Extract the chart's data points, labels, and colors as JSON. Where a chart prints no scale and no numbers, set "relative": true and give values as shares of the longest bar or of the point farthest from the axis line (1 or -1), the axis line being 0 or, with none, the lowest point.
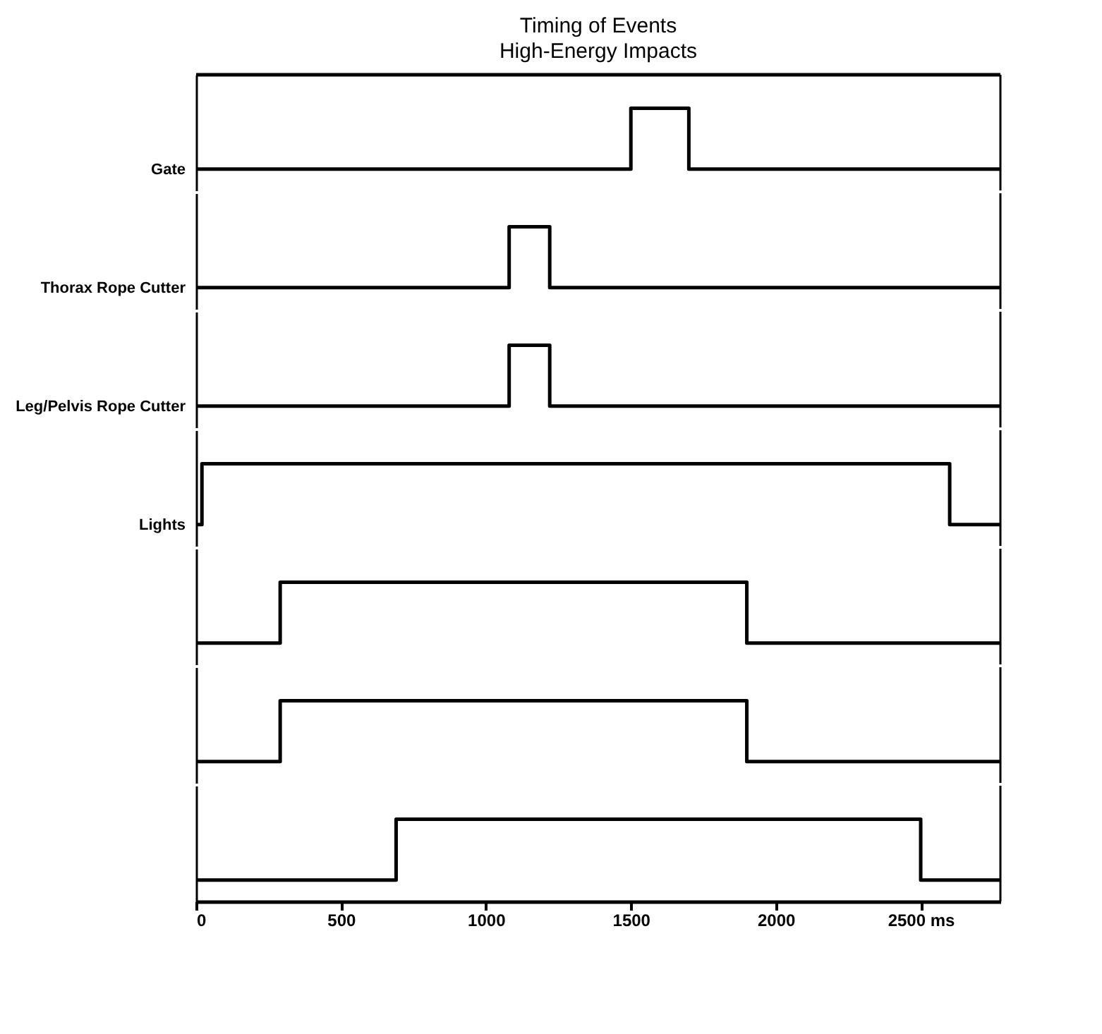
{
  "chart_data": [
    {
      "type": "step",
      "title": "Timing of Events",
      "subtitle": "High-Energy Impacts",
      "ylabel": "Gate",
      "relative": true,
      "tick_labels": false,
      "xlim": [
        0,
        2775
      ],
      "x": [
        0,
        1500,
        1700,
        2775
      ],
      "series": [
        {
          "color": "#000000",
          "values": [
            0,
            1,
            0,
            0
          ]
        }
      ]
    },
    {
      "type": "step",
      "ylabel": "Thorax Rope Cutter",
      "relative": true,
      "tick_labels": false,
      "xlim": [
        0,
        2775
      ],
      "x": [
        0,
        1080,
        1220,
        2775
      ],
      "series": [
        {
          "color": "#000000",
          "values": [
            0,
            1,
            0,
            0
          ]
        }
      ]
    },
    {
      "type": "step",
      "ylabel": "Leg/Pelvis Rope Cutter",
      "relative": true,
      "tick_labels": false,
      "xlim": [
        0,
        2775
      ],
      "x": [
        0,
        1080,
        1220,
        2775
      ],
      "series": [
        {
          "color": "#000000",
          "values": [
            0,
            1,
            0,
            0
          ]
        }
      ]
    },
    {
      "type": "step",
      "ylabel": "Lights",
      "relative": true,
      "tick_labels": false,
      "xlim": [
        0,
        2775
      ],
      "x": [
        0,
        20,
        2600,
        2775
      ],
      "series": [
        {
          "color": "#000000",
          "values": [
            0,
            1,
            0,
            0
          ]
        }
      ]
    },
    {
      "type": "step",
      "relative": true,
      "tick_labels": false,
      "xlim": [
        0,
        2775
      ],
      "x": [
        0,
        290,
        1900,
        2775
      ],
      "series": [
        {
          "color": "#000000",
          "values": [
            0,
            1,
            0,
            0
          ]
        }
      ]
    },
    {
      "type": "step",
      "relative": true,
      "tick_labels": false,
      "xlim": [
        0,
        2775
      ],
      "x": [
        0,
        290,
        1900,
        2775
      ],
      "series": [
        {
          "color": "#000000",
          "values": [
            0,
            1,
            0,
            0
          ]
        }
      ]
    },
    {
      "type": "step",
      "relative": true,
      "tick_labels": "x",
      "xlim": [
        0,
        2775
      ],
      "xticks": [
        0,
        500,
        1000,
        1500,
        2000,
        {
          "value": 2500,
          "label": "2500 ms"
        }
      ],
      "x": [
        0,
        690,
        2500,
        2775
      ],
      "series": [
        {
          "color": "#000000",
          "values": [
            0,
            1,
            0,
            0
          ]
        }
      ]
    }
  ]
}
